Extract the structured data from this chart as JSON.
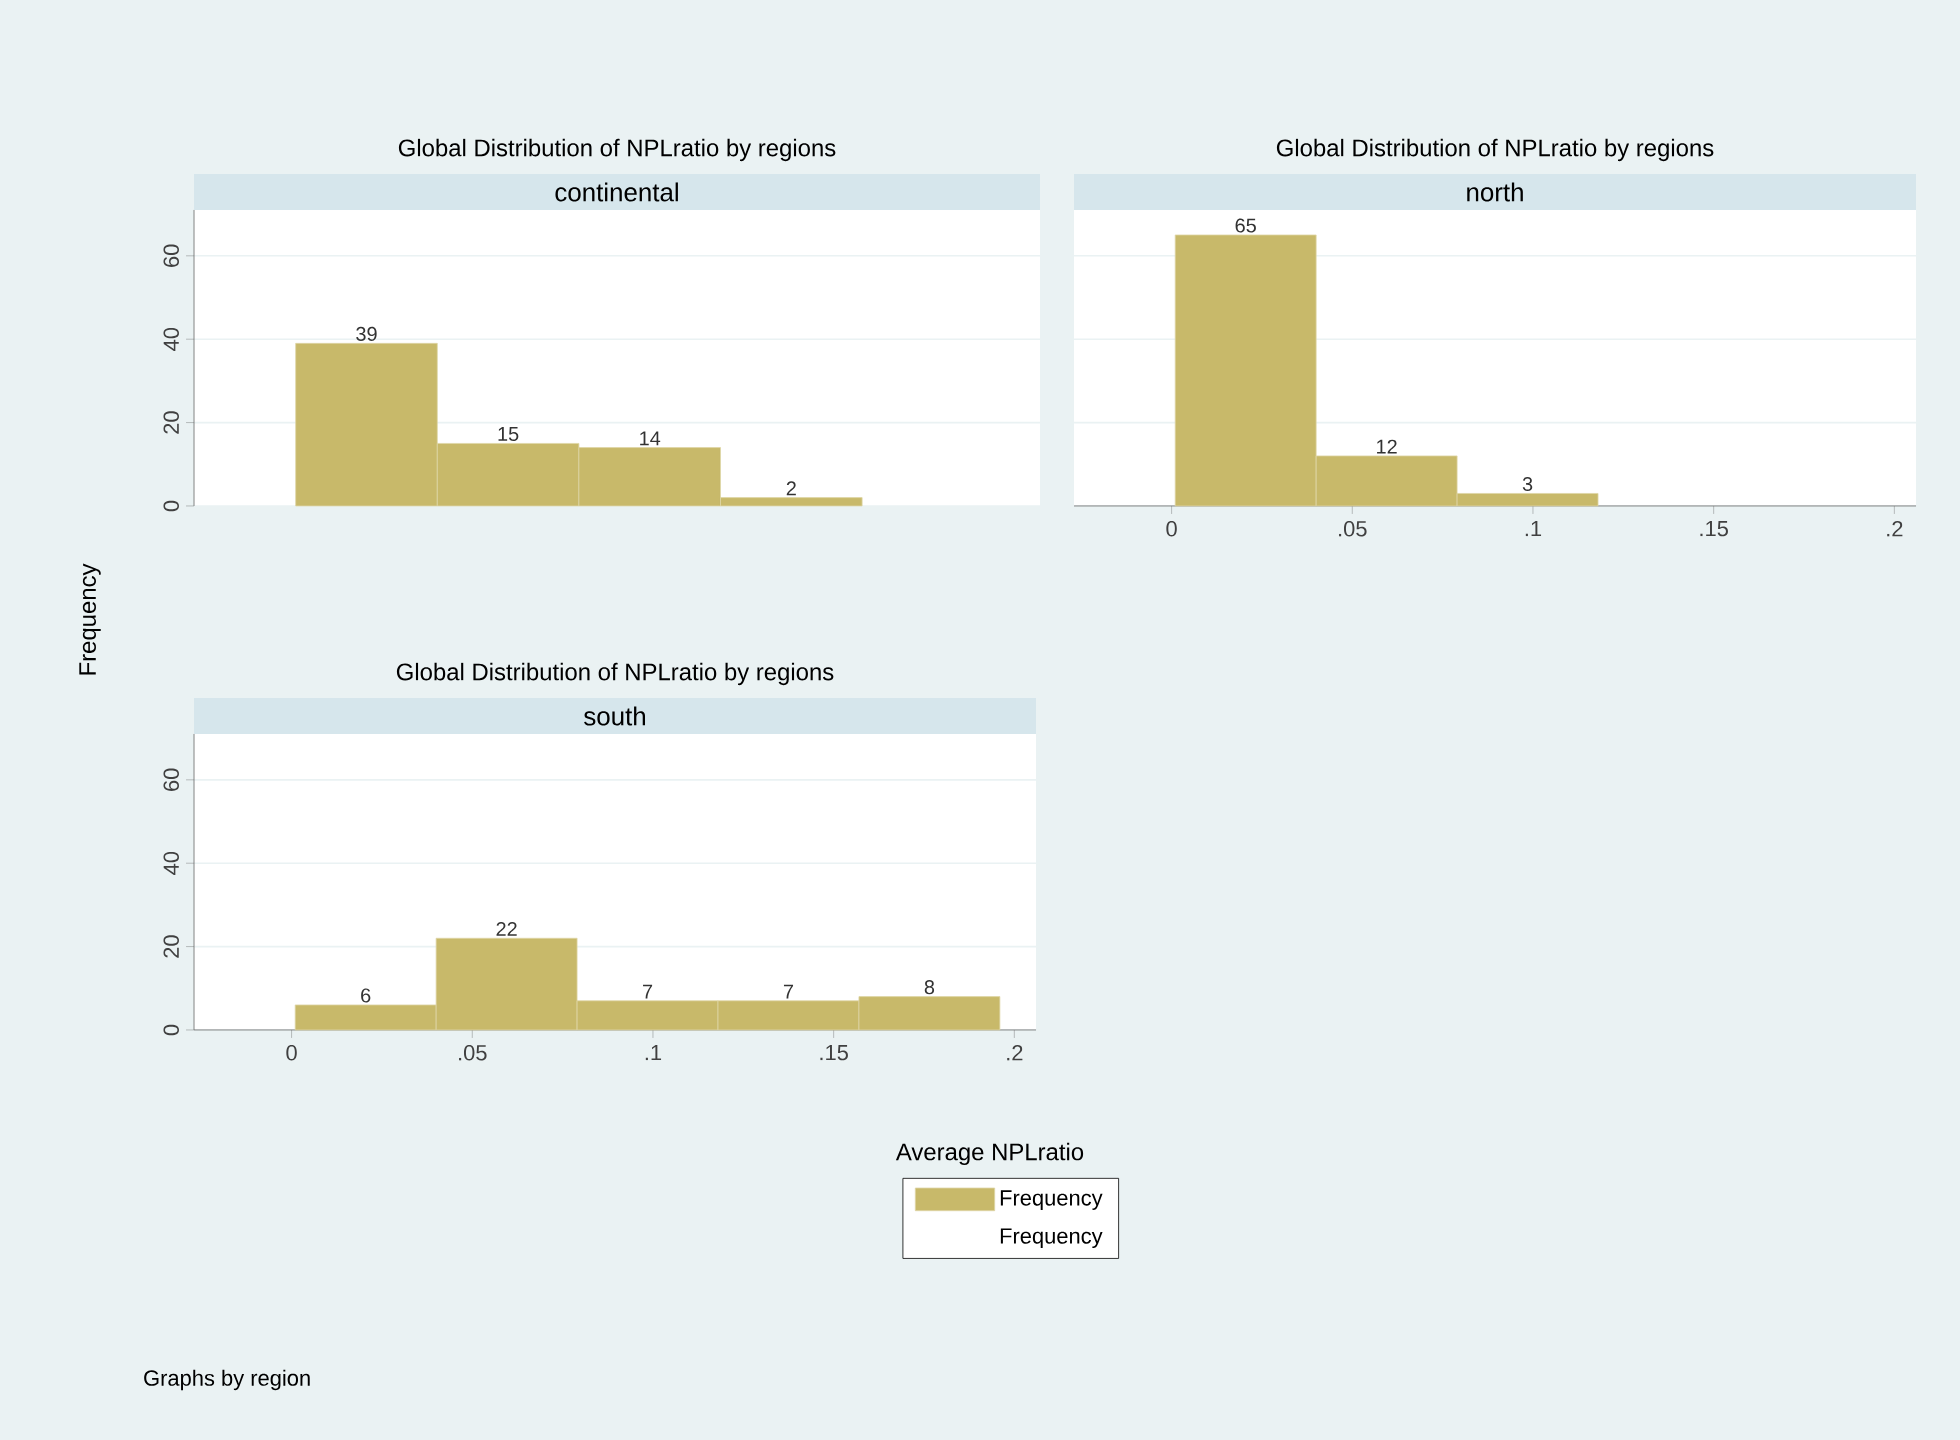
{
  "chart_data": [
    {
      "type": "histogram",
      "title": "Global Distribution of NPLratio by regions",
      "subtitle": "continental",
      "bins": [
        0.001,
        0.04,
        0.079,
        0.118,
        0.157
      ],
      "values": [
        39,
        15,
        14,
        2
      ],
      "color": "#c8b96a",
      "xlim": [
        -0.027,
        0.206
      ],
      "ylim": [
        0,
        71
      ],
      "yticks": [
        0,
        20,
        40,
        60
      ],
      "grid": "y",
      "data_labels": true,
      "tick_labels": "y"
    },
    {
      "type": "histogram",
      "title": "Global Distribution of NPLratio by regions",
      "subtitle": "north",
      "bins": [
        0.001,
        0.04,
        0.079,
        0.118
      ],
      "values": [
        65,
        12,
        3
      ],
      "color": "#c8b96a",
      "xlim": [
        -0.027,
        0.206
      ],
      "xticks": [
        {
          "value": 0,
          "label": "0"
        },
        {
          "value": 0.05,
          "label": ".05"
        },
        {
          "value": 0.1,
          "label": ".1"
        },
        {
          "value": 0.15,
          "label": ".15"
        },
        {
          "value": 0.2,
          "label": ".2"
        }
      ],
      "ylim": [
        0,
        71
      ],
      "yticks": [
        0,
        20,
        40,
        60
      ],
      "grid": "y",
      "data_labels": true,
      "tick_labels": "x"
    },
    {
      "type": "histogram",
      "title": "Global Distribution of NPLratio by regions",
      "subtitle": "south",
      "bins": [
        0.001,
        0.04,
        0.079,
        0.118,
        0.157,
        0.196
      ],
      "xlabel": "Average NPLratio",
      "ylabel": "Frequency",
      "xlim": [
        -0.027,
        0.206
      ],
      "xticks": [
        {
          "value": 0,
          "label": "0"
        },
        {
          "value": 0.05,
          "label": ".05"
        },
        {
          "value": 0.1,
          "label": ".1"
        },
        {
          "value": 0.15,
          "label": ".15"
        },
        {
          "value": 0.2,
          "label": ".2"
        }
      ],
      "ylim": [
        0,
        71
      ],
      "yticks": [
        0,
        20,
        40,
        60
      ],
      "grid": "y",
      "data_labels": true,
      "legend": "bottom",
      "annotations": [
        "Graphs by region",
        "Frequency"
      ],
      "series": [
        {
          "name": "Frequency",
          "color": "#c8b96a",
          "values": [
            6,
            22,
            7,
            7,
            8
          ]
        }
      ]
    }
  ]
}
